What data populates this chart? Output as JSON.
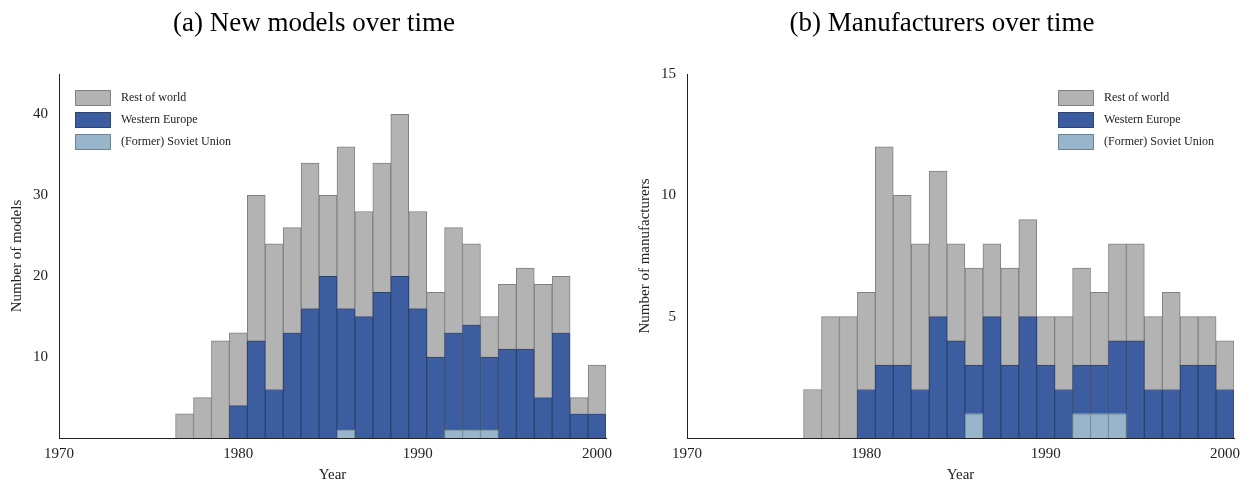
{
  "chart_data": [
    {
      "type": "bar",
      "title": "(a) New models over time",
      "xlabel": "Year",
      "ylabel": "Number of models",
      "stacked": true,
      "legend": "top left",
      "grid": false,
      "x": [
        1977,
        1978,
        1979,
        1980,
        1981,
        1982,
        1983,
        1984,
        1985,
        1986,
        1987,
        1988,
        1989,
        1990,
        1991,
        1992,
        1993,
        1994,
        1995,
        1996,
        1997,
        1998,
        1999,
        2000
      ],
      "xlim": [
        1970,
        2000.5
      ],
      "xticks": [
        1970,
        1980,
        1990,
        2000
      ],
      "ylim": [
        0,
        45
      ],
      "yticks": [
        10,
        20,
        30,
        40
      ],
      "series": [
        {
          "name": "(Former) Soviet Union",
          "color": "#97b6cc",
          "values": [
            0,
            0,
            0,
            0,
            0,
            0,
            0,
            0,
            0,
            1,
            0,
            0,
            0,
            0,
            0,
            1,
            1,
            1,
            0,
            0,
            0,
            0,
            0,
            0
          ]
        },
        {
          "name": "Western Europe",
          "color": "#3c5da0",
          "values": [
            0,
            0,
            0,
            4,
            12,
            6,
            13,
            16,
            20,
            15,
            15,
            18,
            20,
            16,
            10,
            12,
            13,
            9,
            11,
            11,
            5,
            13,
            3,
            3
          ]
        },
        {
          "name": "Rest of world",
          "color": "#b3b3b3",
          "values": [
            3,
            5,
            12,
            9,
            18,
            18,
            13,
            18,
            10,
            20,
            13,
            16,
            20,
            12,
            8,
            13,
            10,
            5,
            8,
            10,
            14,
            7,
            2,
            6
          ]
        }
      ]
    },
    {
      "type": "bar",
      "title": "(b) Manufacturers over time",
      "xlabel": "Year",
      "ylabel": "Number of manufacturers",
      "stacked": true,
      "legend": "top right",
      "grid": false,
      "x": [
        1977,
        1978,
        1979,
        1980,
        1981,
        1982,
        1983,
        1984,
        1985,
        1986,
        1987,
        1988,
        1989,
        1990,
        1991,
        1992,
        1993,
        1994,
        1995,
        1996,
        1997,
        1998,
        1999,
        2000
      ],
      "xlim": [
        1970,
        2000.5
      ],
      "xticks": [
        1970,
        1980,
        1990,
        2000
      ],
      "ylim": [
        0,
        15
      ],
      "yticks": [
        5,
        10,
        15
      ],
      "series": [
        {
          "name": "(Former) Soviet Union",
          "color": "#97b6cc",
          "values": [
            0,
            0,
            0,
            0,
            0,
            0,
            0,
            0,
            0,
            1,
            0,
            0,
            0,
            0,
            0,
            1,
            1,
            1,
            0,
            0,
            0,
            0,
            0,
            0
          ]
        },
        {
          "name": "Western Europe",
          "color": "#3c5da0",
          "values": [
            0,
            0,
            0,
            2,
            3,
            3,
            2,
            5,
            4,
            2,
            5,
            3,
            5,
            3,
            2,
            2,
            2,
            3,
            4,
            2,
            2,
            3,
            3,
            2
          ]
        },
        {
          "name": "Rest of world",
          "color": "#b3b3b3",
          "values": [
            2,
            5,
            5,
            4,
            9,
            7,
            6,
            6,
            4,
            4,
            3,
            4,
            4,
            2,
            3,
            4,
            3,
            4,
            4,
            3,
            4,
            2,
            2,
            2
          ]
        }
      ]
    }
  ]
}
